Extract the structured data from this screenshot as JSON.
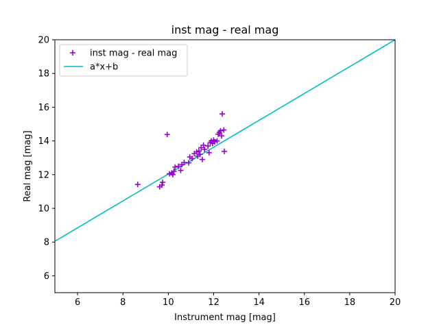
{
  "chart_data": {
    "type": "scatter",
    "title": "inst mag - real mag",
    "xlabel": "Instrument mag [mag]",
    "ylabel": "Real mag [mag]",
    "xlim": [
      5,
      20
    ],
    "ylim": [
      5,
      20
    ],
    "xticks": [
      6,
      8,
      10,
      12,
      14,
      16,
      18,
      20
    ],
    "yticks": [
      6,
      8,
      10,
      12,
      14,
      16,
      18,
      20
    ],
    "grid": false,
    "legend_position": "top-left",
    "series": [
      {
        "name": "inst mag - real mag",
        "kind": "scatter",
        "marker": "plus",
        "color": "#9400D3",
        "points": [
          [
            8.65,
            11.42
          ],
          [
            9.62,
            11.28
          ],
          [
            9.72,
            11.38
          ],
          [
            9.75,
            11.55
          ],
          [
            9.95,
            14.38
          ],
          [
            10.05,
            12.05
          ],
          [
            10.15,
            12.1
          ],
          [
            10.2,
            12.0
          ],
          [
            10.25,
            12.2
          ],
          [
            10.3,
            12.45
          ],
          [
            10.45,
            12.5
          ],
          [
            10.55,
            12.25
          ],
          [
            10.6,
            12.6
          ],
          [
            10.7,
            12.72
          ],
          [
            10.9,
            12.7
          ],
          [
            10.95,
            13.05
          ],
          [
            11.05,
            12.95
          ],
          [
            11.15,
            13.25
          ],
          [
            11.25,
            13.35
          ],
          [
            11.3,
            13.1
          ],
          [
            11.35,
            13.4
          ],
          [
            11.4,
            13.2
          ],
          [
            11.45,
            13.6
          ],
          [
            11.5,
            12.9
          ],
          [
            11.55,
            13.75
          ],
          [
            11.6,
            13.5
          ],
          [
            11.75,
            13.7
          ],
          [
            11.8,
            13.3
          ],
          [
            11.85,
            13.9
          ],
          [
            11.9,
            14.0
          ],
          [
            11.95,
            13.85
          ],
          [
            12.0,
            14.05
          ],
          [
            12.05,
            13.95
          ],
          [
            12.15,
            14.0
          ],
          [
            12.2,
            14.4
          ],
          [
            12.25,
            14.5
          ],
          [
            12.3,
            14.6
          ],
          [
            12.35,
            14.3
          ],
          [
            12.38,
            15.6
          ],
          [
            12.45,
            14.65
          ],
          [
            12.47,
            13.38
          ]
        ]
      },
      {
        "name": "a*x+b",
        "kind": "line",
        "color": "#00BFBF",
        "points": [
          [
            5,
            8.05
          ],
          [
            20,
            20.0
          ]
        ]
      }
    ]
  }
}
